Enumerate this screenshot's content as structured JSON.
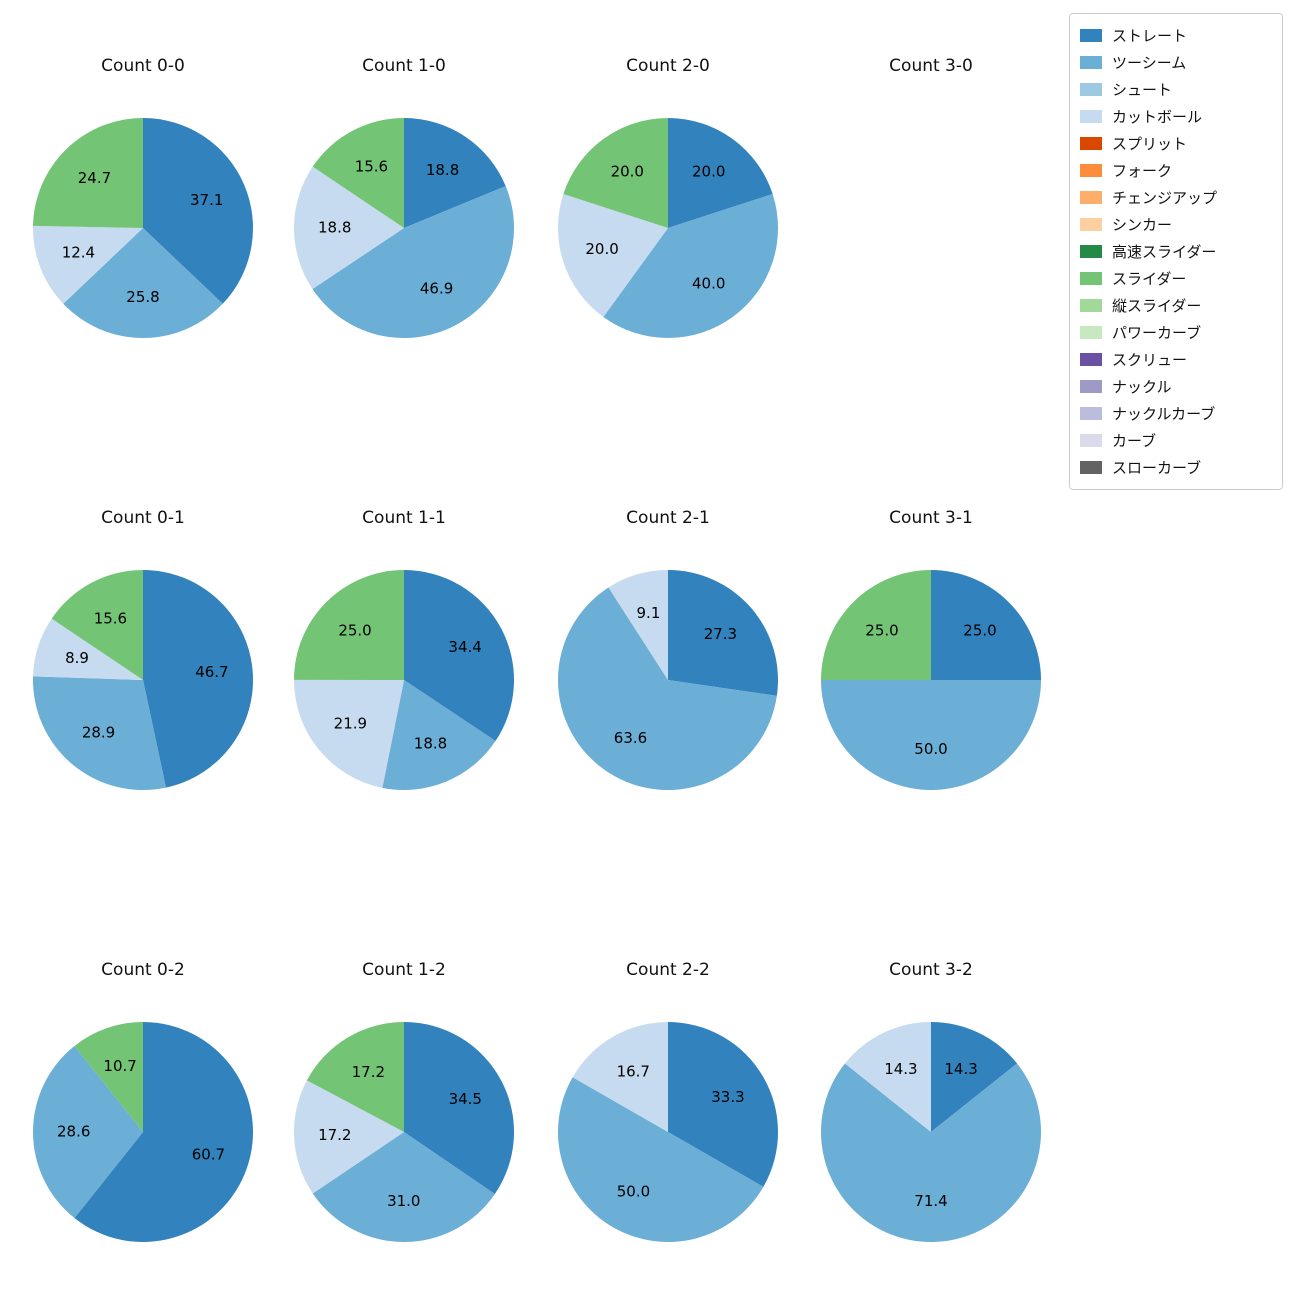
{
  "figure": {
    "background": "#ffffff",
    "grid": {
      "rows": 3,
      "cols": 4
    },
    "legend_position": "upper right"
  },
  "legend": {
    "items": [
      {
        "label": "ストレート",
        "color": "#3182bd"
      },
      {
        "label": "ツーシーム",
        "color": "#6baed6"
      },
      {
        "label": "シュート",
        "color": "#9ecae1"
      },
      {
        "label": "カットボール",
        "color": "#c6dbef"
      },
      {
        "label": "スプリット",
        "color": "#d94801"
      },
      {
        "label": "フォーク",
        "color": "#fd8d3c"
      },
      {
        "label": "チェンジアップ",
        "color": "#fdae6b"
      },
      {
        "label": "シンカー",
        "color": "#fdd0a2"
      },
      {
        "label": "高速スライダー",
        "color": "#238b45"
      },
      {
        "label": "スライダー",
        "color": "#74c476"
      },
      {
        "label": "縦スライダー",
        "color": "#a1d99b"
      },
      {
        "label": "パワーカーブ",
        "color": "#c7e9c0"
      },
      {
        "label": "スクリュー",
        "color": "#6a51a3"
      },
      {
        "label": "ナックル",
        "color": "#9e9ac8"
      },
      {
        "label": "ナックルカーブ",
        "color": "#bcbddc"
      },
      {
        "label": "カーブ",
        "color": "#dadaeb"
      },
      {
        "label": "スローカーブ",
        "color": "#636363"
      }
    ]
  },
  "chart_data": [
    {
      "type": "pie",
      "title": "Count 0-0",
      "slices": [
        {
          "label": "ストレート",
          "value": 37.1
        },
        {
          "label": "ツーシーム",
          "value": 25.8
        },
        {
          "label": "カットボール",
          "value": 12.4
        },
        {
          "label": "スライダー",
          "value": 24.7
        }
      ]
    },
    {
      "type": "pie",
      "title": "Count 1-0",
      "slices": [
        {
          "label": "ストレート",
          "value": 18.8
        },
        {
          "label": "ツーシーム",
          "value": 46.9
        },
        {
          "label": "カットボール",
          "value": 18.8
        },
        {
          "label": "スライダー",
          "value": 15.6
        }
      ]
    },
    {
      "type": "pie",
      "title": "Count 2-0",
      "slices": [
        {
          "label": "ストレート",
          "value": 20.0
        },
        {
          "label": "ツーシーム",
          "value": 40.0
        },
        {
          "label": "カットボール",
          "value": 20.0
        },
        {
          "label": "スライダー",
          "value": 20.0
        }
      ]
    },
    {
      "type": "pie",
      "title": "Count 3-0",
      "slices": []
    },
    {
      "type": "pie",
      "title": "Count 0-1",
      "slices": [
        {
          "label": "ストレート",
          "value": 46.7
        },
        {
          "label": "ツーシーム",
          "value": 28.9
        },
        {
          "label": "カットボール",
          "value": 8.9
        },
        {
          "label": "スライダー",
          "value": 15.6
        }
      ]
    },
    {
      "type": "pie",
      "title": "Count 1-1",
      "slices": [
        {
          "label": "ストレート",
          "value": 34.4
        },
        {
          "label": "ツーシーム",
          "value": 18.8
        },
        {
          "label": "カットボール",
          "value": 21.9
        },
        {
          "label": "スライダー",
          "value": 25.0
        }
      ]
    },
    {
      "type": "pie",
      "title": "Count 2-1",
      "slices": [
        {
          "label": "ストレート",
          "value": 27.3
        },
        {
          "label": "ツーシーム",
          "value": 63.6
        },
        {
          "label": "カットボール",
          "value": 9.1
        }
      ]
    },
    {
      "type": "pie",
      "title": "Count 3-1",
      "slices": [
        {
          "label": "ストレート",
          "value": 25.0
        },
        {
          "label": "ツーシーム",
          "value": 50.0
        },
        {
          "label": "スライダー",
          "value": 25.0
        }
      ]
    },
    {
      "type": "pie",
      "title": "Count 0-2",
      "slices": [
        {
          "label": "ストレート",
          "value": 60.7
        },
        {
          "label": "ツーシーム",
          "value": 28.6
        },
        {
          "label": "スライダー",
          "value": 10.7
        }
      ]
    },
    {
      "type": "pie",
      "title": "Count 1-2",
      "slices": [
        {
          "label": "ストレート",
          "value": 34.5
        },
        {
          "label": "ツーシーム",
          "value": 31.0
        },
        {
          "label": "カットボール",
          "value": 17.2
        },
        {
          "label": "スライダー",
          "value": 17.2
        }
      ]
    },
    {
      "type": "pie",
      "title": "Count 2-2",
      "slices": [
        {
          "label": "ストレート",
          "value": 33.3
        },
        {
          "label": "ツーシーム",
          "value": 50.0
        },
        {
          "label": "カットボール",
          "value": 16.7
        }
      ]
    },
    {
      "type": "pie",
      "title": "Count 3-2",
      "slices": [
        {
          "label": "ストレート",
          "value": 14.3
        },
        {
          "label": "ツーシーム",
          "value": 71.4
        },
        {
          "label": "カットボール",
          "value": 14.3
        }
      ]
    }
  ]
}
